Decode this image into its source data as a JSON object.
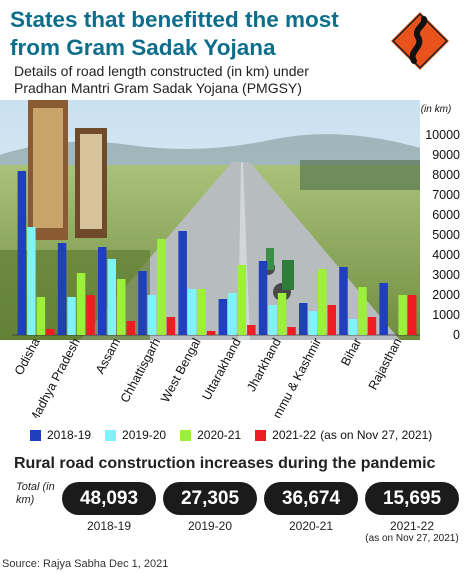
{
  "header": {
    "title": "States that benefitted the most from Gram Sadak Yojana",
    "subtitle": "Details of road length constructed (in km) under Pradhan Mantri Gram Sadak Yojana (PMGSY)"
  },
  "colors": {
    "title": "#0d6e8c",
    "s2018": "#1f3fbf",
    "s2019": "#7ff3f8",
    "s2020": "#9cf03a",
    "s2021": "#ee1d23",
    "sign": "#e8531d",
    "pill": "#1b1b1b"
  },
  "chart_data": {
    "type": "bar",
    "unit_label": "(in km)",
    "categories": [
      "Odisha",
      "Madhya Pradesh",
      "Assam",
      "Chhattisgarh",
      "West Bengal",
      "Uttarakhand",
      "Jharkhand",
      "Jammu & Kashmir",
      "Bihar",
      "Rajasthan"
    ],
    "series": [
      {
        "name": "2018-19",
        "values": [
          8200,
          4600,
          4400,
          3200,
          5200,
          1800,
          3700,
          1600,
          3400,
          2600
        ]
      },
      {
        "name": "2019-20",
        "values": [
          5400,
          1900,
          3800,
          2000,
          2300,
          2100,
          1500,
          1200,
          800,
          0
        ]
      },
      {
        "name": "2020-21",
        "values": [
          1900,
          3100,
          2800,
          4800,
          2300,
          3500,
          2100,
          3300,
          2400,
          2000
        ]
      },
      {
        "name": "2021-22",
        "values": [
          300,
          2000,
          700,
          900,
          200,
          500,
          400,
          1500,
          900,
          2000
        ]
      }
    ],
    "ylim": [
      0,
      10000
    ],
    "yticks": [
      0,
      1000,
      2000,
      3000,
      4000,
      5000,
      6000,
      7000,
      8000,
      9000,
      10000
    ],
    "legend_note": "(as on Nov 27, 2021)",
    "legend_position": "bottom"
  },
  "summary": {
    "title": "Rural road construction increases during the pandemic",
    "total_label": "Total (in km)",
    "items": [
      {
        "value": "48,093",
        "year": "2018-19",
        "note": ""
      },
      {
        "value": "27,305",
        "year": "2019-20",
        "note": ""
      },
      {
        "value": "36,674",
        "year": "2020-21",
        "note": ""
      },
      {
        "value": "15,695",
        "year": "2021-22",
        "note": "(as on Nov 27, 2021)"
      }
    ]
  },
  "source": "Source: Rajya Sabha Dec 1, 2021"
}
